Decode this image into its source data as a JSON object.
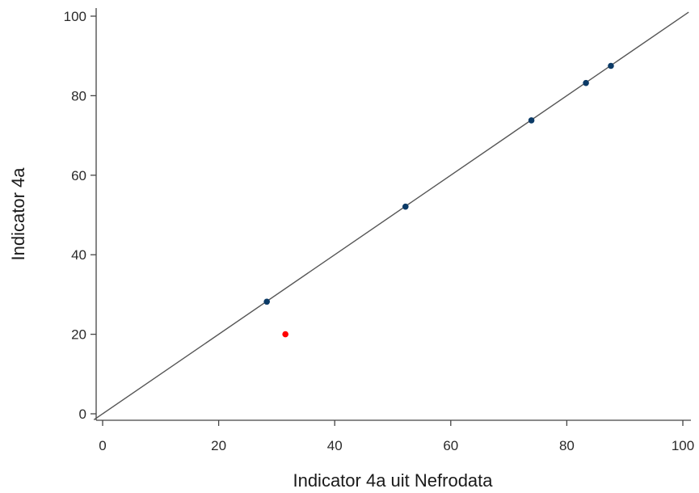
{
  "chart_data": {
    "type": "scatter",
    "title": "",
    "xlabel": "Indicator 4a uit Nefrodata",
    "ylabel": "Indicator 4a",
    "xlim": [
      -1.5,
      101
    ],
    "ylim": [
      -1.5,
      101
    ],
    "xticks": [
      "0",
      "20",
      "40",
      "60",
      "80",
      "100"
    ],
    "yticks": [
      "0",
      "20",
      "40",
      "60",
      "80",
      "100"
    ],
    "grid": false,
    "legend": "none",
    "reference_line": {
      "from": [
        -1.5,
        -1.5
      ],
      "to": [
        101,
        101
      ],
      "color": "#555555"
    },
    "series": [
      {
        "color": "#0b3a66",
        "points": [
          {
            "x": 28.3,
            "y": 28.2
          },
          {
            "x": 52.2,
            "y": 52.1
          },
          {
            "x": 73.9,
            "y": 73.8
          },
          {
            "x": 83.3,
            "y": 83.2
          },
          {
            "x": 87.6,
            "y": 87.5
          }
        ]
      },
      {
        "color": "#ff0000",
        "points": [
          {
            "x": 31.5,
            "y": 20.0
          }
        ]
      }
    ]
  }
}
